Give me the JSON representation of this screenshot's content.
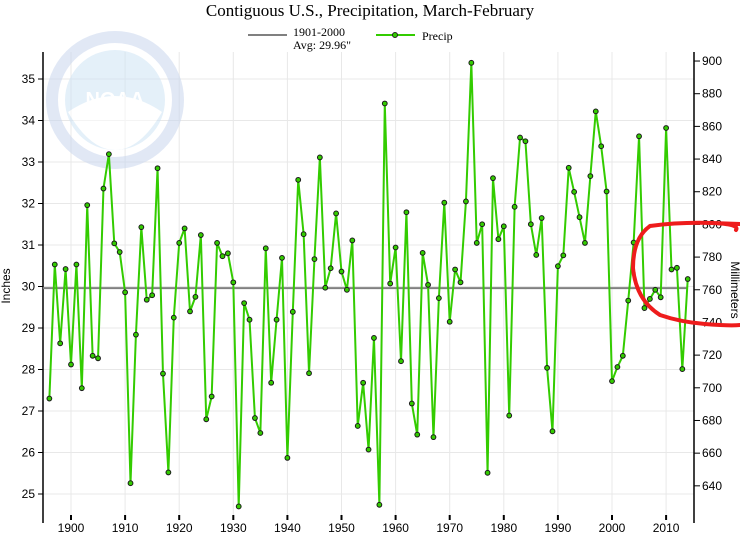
{
  "chart_data": {
    "type": "line",
    "title": "Contiguous U.S., Precipitation, March-February",
    "ylabel": "Inches",
    "y2label": "Millimeters",
    "xlabel": "",
    "xlim": [
      1894.3,
      2014.9
    ],
    "ylim": [
      24.3,
      35.5
    ],
    "grid": true,
    "legend_position": "top-center",
    "x_ticks": [
      1900,
      1910,
      1920,
      1930,
      1940,
      1950,
      1960,
      1970,
      1980,
      1990,
      2000,
      2010
    ],
    "y_ticks": [
      25,
      26,
      27,
      28,
      29,
      30,
      31,
      32,
      33,
      34,
      35
    ],
    "y2_ticks": [
      640,
      660,
      680,
      700,
      720,
      740,
      760,
      780,
      800,
      820,
      840,
      860,
      880,
      900
    ],
    "legend": [
      {
        "name": "1901-2000",
        "label_line2": "Avg: 29.96\"",
        "color": "#808080"
      },
      {
        "name": "Precip",
        "color": "#33cc00"
      }
    ],
    "average": 29.96,
    "series": [
      {
        "name": "Precip",
        "color": "#33cc00",
        "start_year": 1896,
        "values": [
          27.3,
          30.53,
          28.63,
          30.42,
          28.12,
          30.53,
          27.55,
          31.96,
          28.33,
          28.27,
          32.36,
          33.19,
          31.04,
          30.83,
          29.86,
          25.26,
          28.84,
          31.43,
          29.68,
          29.79,
          32.85,
          27.9,
          25.52,
          29.25,
          31.05,
          31.4,
          29.4,
          29.75,
          31.24,
          26.8,
          27.35,
          31.05,
          30.73,
          30.8,
          30.1,
          24.7,
          29.6,
          29.2,
          26.83,
          26.47,
          30.92,
          27.68,
          29.2,
          30.69,
          25.87,
          29.39,
          32.57,
          31.26,
          27.91,
          30.66,
          33.11,
          29.97,
          30.44,
          31.76,
          30.36,
          29.92,
          31.11,
          26.64,
          27.68,
          26.07,
          28.76,
          24.74,
          34.41,
          30.07,
          30.94,
          28.2,
          31.79,
          27.18,
          26.43,
          30.81,
          30.04,
          26.37,
          29.72,
          32.02,
          29.15,
          30.41,
          30.1,
          32.05,
          35.39,
          31.05,
          31.5,
          25.51,
          32.61,
          31.14,
          31.45,
          26.89,
          31.92,
          33.59,
          33.5,
          31.5,
          30.76,
          31.65,
          28.04,
          26.51,
          30.49,
          30.75,
          32.86,
          32.28,
          31.67,
          31.05,
          32.66,
          34.22,
          33.38,
          32.29,
          27.72,
          28.06,
          28.33,
          29.66,
          31.06,
          33.62,
          29.48,
          29.7,
          29.92,
          29.74,
          33.82,
          30.41,
          30.45,
          28.01,
          30.18
        ]
      }
    ]
  },
  "watermark": {
    "logo_text": "NOAA",
    "ring_text": "NATIONAL OCEANIC AND ATMOSPHERIC ADMINISTRATION · U.S. DEPARTMENT OF COMMERCE"
  },
  "colors": {
    "precip": "#33cc00",
    "average": "#808080",
    "annotation": "#ee1c1c",
    "grid": "#e8e8e8"
  }
}
